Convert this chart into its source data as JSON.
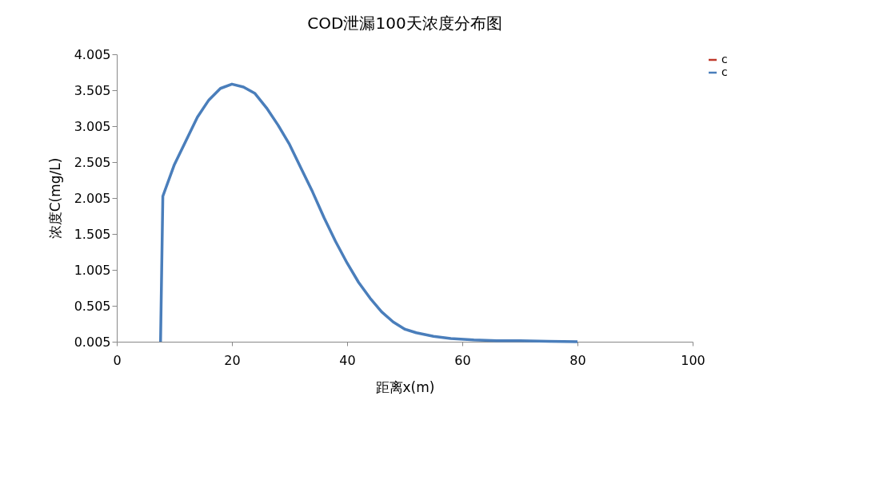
{
  "chart_data": {
    "type": "line",
    "title": "COD泄漏100天浓度分布图",
    "xlabel": "距离x(m)",
    "ylabel": "浓度C(mg/L)",
    "xlim": [
      0,
      100
    ],
    "xticks": [
      0,
      20,
      40,
      60,
      80,
      100
    ],
    "ylim": [
      0.005,
      4.005
    ],
    "yticks": [
      0.005,
      0.505,
      1.005,
      1.505,
      2.005,
      2.505,
      3.005,
      3.505,
      4.005
    ],
    "grid": false,
    "legend": "right",
    "marker": "none",
    "line_style": "solid",
    "series": [
      {
        "name": "c",
        "color": "#c0392b"
      },
      {
        "name": "c",
        "color": "#4a7ebb",
        "x": [
          7.6,
          8,
          10,
          12,
          14,
          16,
          18,
          20,
          22,
          24,
          26,
          28,
          30,
          32,
          34,
          36,
          38,
          40,
          42,
          44,
          46,
          48,
          50,
          52,
          55,
          58,
          62,
          66,
          70,
          75,
          80
        ],
        "values": [
          0.005,
          2.03,
          2.47,
          2.8,
          3.13,
          3.37,
          3.53,
          3.59,
          3.55,
          3.46,
          3.26,
          3.02,
          2.75,
          2.42,
          2.09,
          1.73,
          1.4,
          1.1,
          0.83,
          0.61,
          0.42,
          0.28,
          0.18,
          0.13,
          0.08,
          0.05,
          0.03,
          0.02,
          0.02,
          0.01,
          0.005
        ]
      }
    ]
  }
}
